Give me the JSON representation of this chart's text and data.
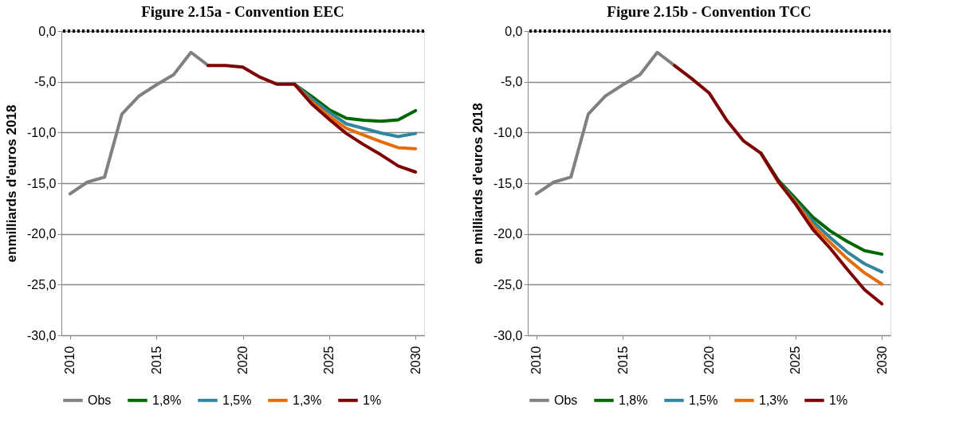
{
  "chart_data": [
    {
      "type": "line",
      "title": "Figure 2.15a - Convention EEC",
      "ylabel": "enmilliards d'euros 2018",
      "xlim": [
        2009.5,
        2030.5
      ],
      "xticks": [
        2010,
        2015,
        2020,
        2025,
        2030
      ],
      "ylim": [
        -30,
        0
      ],
      "yticks": [
        {
          "value": 0,
          "label": "0,0"
        },
        {
          "value": -5,
          "label": "-5,0"
        },
        {
          "value": -10,
          "label": "-10,0"
        },
        {
          "value": -15,
          "label": "-15,0"
        },
        {
          "value": -20,
          "label": "-20,0"
        },
        {
          "value": -25,
          "label": "-25,0"
        },
        {
          "value": -30,
          "label": "-30,0"
        }
      ],
      "grid": "y",
      "legend": "bottom",
      "marker": "none",
      "line_style": "solid",
      "ref_lines": [
        {
          "axis": "y",
          "value": 0,
          "color": "#000000",
          "line_style": "dotted"
        }
      ],
      "series": [
        {
          "name": "Obs",
          "color": "#808080",
          "x": [
            2010,
            2011,
            2012,
            2013,
            2014,
            2015,
            2016,
            2017,
            2018
          ],
          "values": [
            -16.05,
            -14.9,
            -14.4,
            -8.2,
            -6.4,
            -5.3,
            -4.3,
            -2.1,
            -3.4
          ]
        },
        {
          "name": "1,8%",
          "color": "#006600",
          "x": [
            2023,
            2024,
            2025,
            2026,
            2027,
            2028,
            2029,
            2030
          ],
          "values": [
            -5.25,
            -6.45,
            -7.75,
            -8.6,
            -8.8,
            -8.9,
            -8.75,
            -7.85
          ]
        },
        {
          "name": "1,5%",
          "color": "#31859c",
          "x": [
            2023,
            2024,
            2025,
            2026,
            2027,
            2028,
            2029,
            2030
          ],
          "values": [
            -5.25,
            -6.7,
            -8.0,
            -9.15,
            -9.6,
            -10.05,
            -10.4,
            -10.1
          ]
        },
        {
          "name": "1,3%",
          "color": "#e46c0a",
          "x": [
            2023,
            2024,
            2025,
            2026,
            2027,
            2028,
            2029,
            2030
          ],
          "values": [
            -5.25,
            -7.0,
            -8.4,
            -9.6,
            -10.25,
            -10.9,
            -11.5,
            -11.6
          ]
        },
        {
          "name": "1%",
          "color": "#7f0000",
          "x": [
            2018,
            2019,
            2020,
            2021,
            2022,
            2023,
            2024,
            2025,
            2026,
            2027,
            2028,
            2029,
            2030
          ],
          "values": [
            -3.4,
            -3.4,
            -3.55,
            -4.55,
            -5.25,
            -5.25,
            -7.2,
            -8.7,
            -10.1,
            -11.2,
            -12.2,
            -13.3,
            -13.9
          ]
        }
      ]
    },
    {
      "type": "line",
      "title": "Figure 2.15b - Convention TCC",
      "ylabel": "en milliards d'euros 2018",
      "xlim": [
        2009.5,
        2030.5
      ],
      "xticks": [
        2010,
        2015,
        2020,
        2025,
        2030
      ],
      "ylim": [
        -30,
        0
      ],
      "yticks": [
        {
          "value": 0,
          "label": "0,0"
        },
        {
          "value": -5,
          "label": "-5,0"
        },
        {
          "value": -10,
          "label": "-10,0"
        },
        {
          "value": -15,
          "label": "-15,0"
        },
        {
          "value": -20,
          "label": "-20,0"
        },
        {
          "value": -25,
          "label": "-25,0"
        },
        {
          "value": -30,
          "label": "-30,0"
        }
      ],
      "grid": "y",
      "legend": "bottom",
      "marker": "none",
      "line_style": "solid",
      "ref_lines": [
        {
          "axis": "y",
          "value": 0,
          "color": "#000000",
          "line_style": "dotted"
        }
      ],
      "series": [
        {
          "name": "Obs",
          "color": "#808080",
          "x": [
            2010,
            2011,
            2012,
            2013,
            2014,
            2015,
            2016,
            2017,
            2018
          ],
          "values": [
            -16.05,
            -14.9,
            -14.4,
            -8.2,
            -6.4,
            -5.3,
            -4.3,
            -2.1,
            -3.4
          ]
        },
        {
          "name": "1,8%",
          "color": "#006600",
          "x": [
            2023,
            2024,
            2025,
            2026,
            2027,
            2028,
            2029,
            2030
          ],
          "values": [
            -12.05,
            -14.7,
            -16.5,
            -18.35,
            -19.7,
            -20.75,
            -21.65,
            -22.0
          ]
        },
        {
          "name": "1,5%",
          "color": "#31859c",
          "x": [
            2023,
            2024,
            2025,
            2026,
            2027,
            2028,
            2029,
            2030
          ],
          "values": [
            -12.05,
            -14.8,
            -16.8,
            -18.75,
            -20.35,
            -21.8,
            -22.95,
            -23.75
          ]
        },
        {
          "name": "1,3%",
          "color": "#e46c0a",
          "x": [
            2023,
            2024,
            2025,
            2026,
            2027,
            2028,
            2029,
            2030
          ],
          "values": [
            -12.05,
            -14.9,
            -16.9,
            -19.15,
            -20.85,
            -22.45,
            -23.85,
            -24.95
          ]
        },
        {
          "name": "1%",
          "color": "#7f0000",
          "x": [
            2018,
            2019,
            2020,
            2021,
            2022,
            2023,
            2024,
            2025,
            2026,
            2027,
            2028,
            2029,
            2030
          ],
          "values": [
            -3.4,
            -4.7,
            -6.1,
            -8.75,
            -10.85,
            -12.05,
            -14.8,
            -17.05,
            -19.55,
            -21.4,
            -23.5,
            -25.5,
            -26.9
          ]
        }
      ]
    }
  ]
}
